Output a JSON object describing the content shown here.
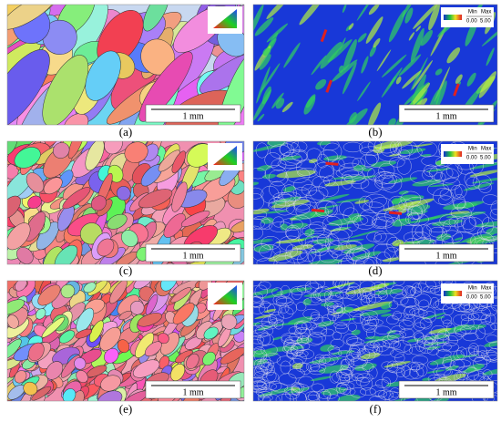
{
  "panels": [
    {
      "label": "(a)",
      "scale_bar": "1 mm"
    },
    {
      "label": "(b)",
      "scale_bar": "1 mm",
      "legend": {
        "min_label": "Min",
        "max_label": "Max",
        "min_value": "0.00",
        "max_value": "5.00"
      }
    },
    {
      "label": "(c)",
      "scale_bar": "1 mm"
    },
    {
      "label": "(d)",
      "scale_bar": "1 mm",
      "legend": {
        "min_label": "Min",
        "max_label": "Max",
        "min_value": "0.00",
        "max_value": "5.00"
      }
    },
    {
      "label": "(e)",
      "scale_bar": "1 mm"
    },
    {
      "label": "(f)",
      "scale_bar": "1 mm",
      "legend": {
        "min_label": "Min",
        "max_label": "Max",
        "min_value": "0.00",
        "max_value": "5.00"
      }
    }
  ]
}
